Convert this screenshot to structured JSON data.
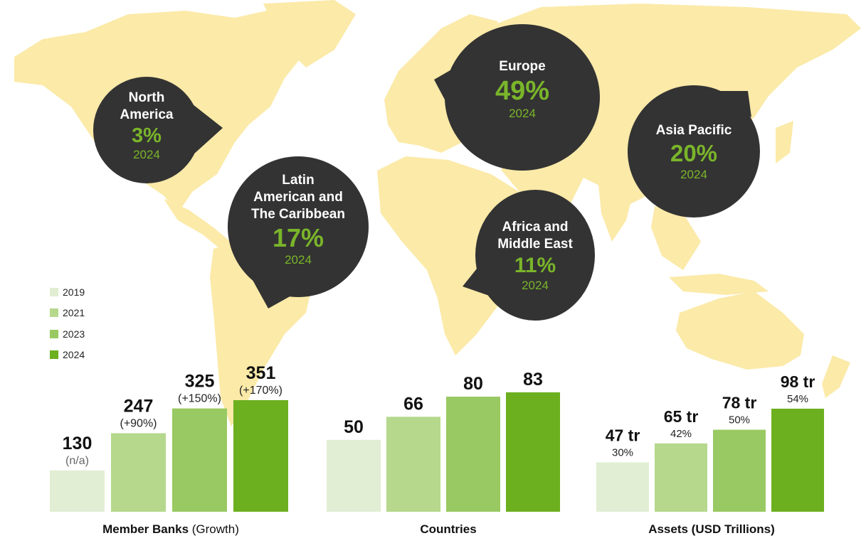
{
  "colors": {
    "map": "#fbeaa8",
    "bubble": "#333333",
    "accent": "#7ab52a",
    "series": [
      "#e1eed3",
      "#b5d88c",
      "#99c962",
      "#6caf1f"
    ]
  },
  "legend": [
    "2019",
    "2021",
    "2023",
    "2024"
  ],
  "regions": [
    {
      "name": "North\nAmerica",
      "pct": "3%",
      "year": "2024"
    },
    {
      "name": "Europe",
      "pct": "49%",
      "year": "2024"
    },
    {
      "name": "Asia Pacific",
      "pct": "20%",
      "year": "2024"
    },
    {
      "name": "Latin\nAmerican and\nThe Caribbean",
      "pct": "17%",
      "year": "2024"
    },
    {
      "name": "Africa and\nMiddle East",
      "pct": "11%",
      "year": "2024"
    }
  ],
  "chart_data": [
    {
      "type": "bar",
      "title": "Member Banks",
      "subtitle": "(Growth)",
      "categories": [
        "2019",
        "2021",
        "2023",
        "2024"
      ],
      "values": [
        130,
        247,
        325,
        351
      ],
      "labels": [
        "130",
        "247",
        "325",
        "351"
      ],
      "sublabels": [
        "(n/a)",
        "(+90%)",
        "(+150%)",
        "(+170%)"
      ]
    },
    {
      "type": "bar",
      "title": "Countries",
      "subtitle": "",
      "categories": [
        "2019",
        "2021",
        "2023",
        "2024"
      ],
      "values": [
        50,
        66,
        80,
        83
      ],
      "labels": [
        "50",
        "66",
        "80",
        "83"
      ],
      "sublabels": [
        "",
        "",
        "",
        ""
      ]
    },
    {
      "type": "bar",
      "title": "Assets (USD Trillions)",
      "subtitle": "",
      "categories": [
        "2019",
        "2021",
        "2023",
        "2024"
      ],
      "values": [
        47,
        65,
        78,
        98
      ],
      "labels": [
        "47 tr",
        "65 tr",
        "78 tr",
        "98 tr"
      ],
      "sublabels": [
        "30%",
        "42%",
        "50%",
        "54%"
      ]
    }
  ]
}
